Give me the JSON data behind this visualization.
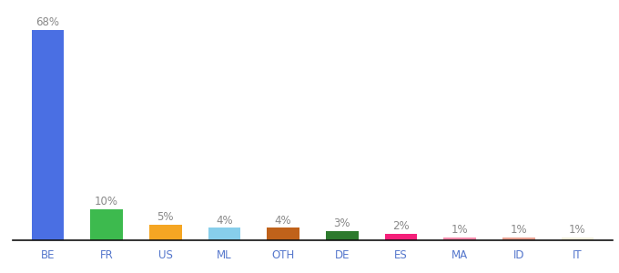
{
  "categories": [
    "BE",
    "FR",
    "US",
    "ML",
    "OTH",
    "DE",
    "ES",
    "MA",
    "ID",
    "IT"
  ],
  "values": [
    68,
    10,
    5,
    4,
    4,
    3,
    2,
    1,
    1,
    1
  ],
  "labels": [
    "68%",
    "10%",
    "5%",
    "4%",
    "4%",
    "3%",
    "2%",
    "1%",
    "1%",
    "1%"
  ],
  "colors": [
    "#4a6fe3",
    "#3dba4e",
    "#f5a623",
    "#87ceeb",
    "#c0621a",
    "#2d7a2d",
    "#f5207a",
    "#f48aaa",
    "#e8a090",
    "#f0eedc"
  ],
  "ylim": [
    0,
    75
  ],
  "background_color": "#ffffff",
  "label_fontsize": 8.5,
  "tick_fontsize": 8.5,
  "label_color": "#888888",
  "tick_color": "#4a6fe3",
  "bar_width": 0.55
}
